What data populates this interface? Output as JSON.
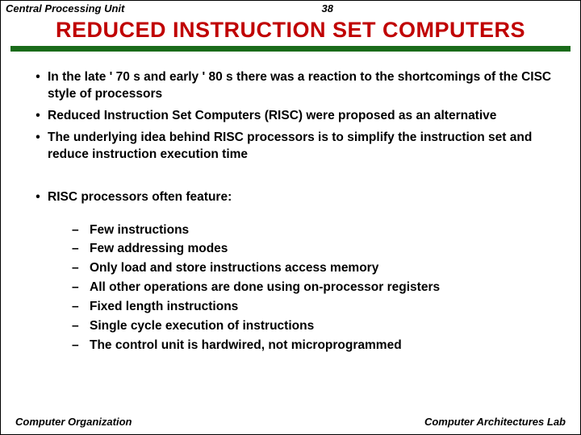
{
  "header": {
    "left": "Central Processing Unit",
    "page": "38"
  },
  "title": {
    "text": "REDUCED INSTRUCTION SET COMPUTERS",
    "color": "#c00000"
  },
  "bar_color": "#1a6b1a",
  "bullets1": [
    "In the late ' 70 s and early ' 80 s there was a reaction to the shortcomings of the CISC style of processors",
    "Reduced Instruction Set Computers (RISC) were proposed as an alternative",
    "The underlying idea behind RISC processors is to simplify the instruction set and reduce instruction execution time"
  ],
  "bullets1b": [
    "RISC processors often feature:"
  ],
  "bullets2": [
    "Few instructions",
    "Few addressing modes",
    "Only load and store instructions access memory",
    "All other operations are done using on-processor registers",
    "Fixed length instructions",
    "Single cycle execution of instructions",
    "The control unit is hardwired, not microprogrammed"
  ],
  "footer": {
    "left": "Computer Organization",
    "right": "Computer Architectures Lab"
  }
}
